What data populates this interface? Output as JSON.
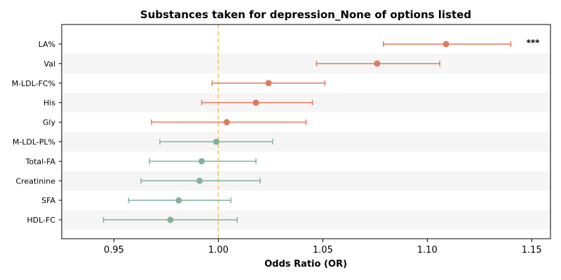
{
  "chart_data": {
    "type": "forest",
    "title": "Substances taken for depression_None of options listed",
    "xlabel": "Odds Ratio (OR)",
    "xlim": [
      0.925,
      1.159
    ],
    "xticks": [
      0.95,
      1.0,
      1.05,
      1.1,
      1.15
    ],
    "xtick_labels": [
      "0.95",
      "1.00",
      "1.05",
      "1.10",
      "1.15"
    ],
    "reference_line": 1.0,
    "reference_color": "#f0c060",
    "colors": {
      "positive": "#e07a5f",
      "negative": "#81b29a",
      "band": "#f5f5f5"
    },
    "categories": [
      "LA%",
      "Val",
      "M-LDL-FC%",
      "His",
      "Gly",
      "M-LDL-PL%",
      "Total-FA",
      "Creatinine",
      "SFA",
      "HDL-FC"
    ],
    "or": [
      1.109,
      1.076,
      1.024,
      1.018,
      1.004,
      0.999,
      0.992,
      0.991,
      0.981,
      0.977
    ],
    "ci_low": [
      1.079,
      1.047,
      0.997,
      0.992,
      0.968,
      0.972,
      0.967,
      0.963,
      0.957,
      0.945
    ],
    "ci_high": [
      1.14,
      1.106,
      1.051,
      1.045,
      1.042,
      1.026,
      1.018,
      1.02,
      1.006,
      1.009
    ],
    "annotations": [
      {
        "category": "LA%",
        "text": "***"
      }
    ]
  }
}
